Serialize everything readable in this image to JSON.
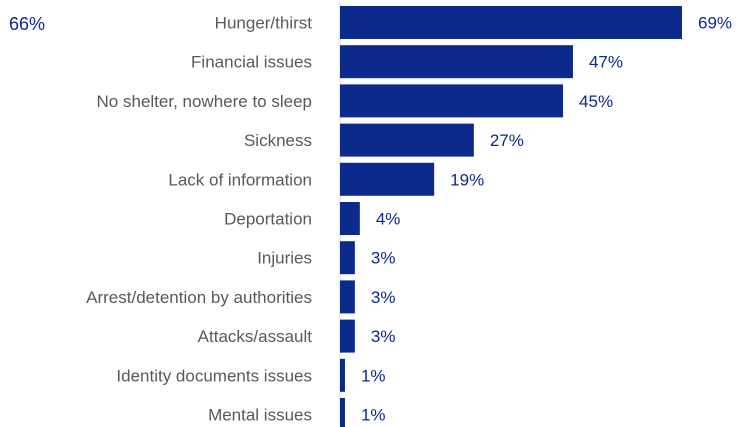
{
  "corner_label": "66%",
  "colors": {
    "bar": "#0b2a8c",
    "value_text": "#0b2a8c",
    "category_text": "#595959",
    "axis": "#d9d9d9"
  },
  "chart_data": {
    "type": "bar",
    "orientation": "horizontal",
    "categories": [
      "Hunger/thirst",
      "Financial issues",
      "No shelter, nowhere to sleep",
      "Sickness",
      "Lack of information",
      "Deportation",
      "Injuries",
      "Arrest/detention by authorities",
      "Attacks/assault",
      "Identity documents issues",
      "Mental issues"
    ],
    "values": [
      69,
      47,
      45,
      27,
      19,
      4,
      3,
      3,
      3,
      1,
      1
    ],
    "value_labels": [
      "69%",
      "47%",
      "45%",
      "27%",
      "19%",
      "4%",
      "3%",
      "3%",
      "3%",
      "1%",
      "1%"
    ],
    "xlim": [
      0,
      69
    ],
    "grid": false,
    "legend": "none"
  }
}
